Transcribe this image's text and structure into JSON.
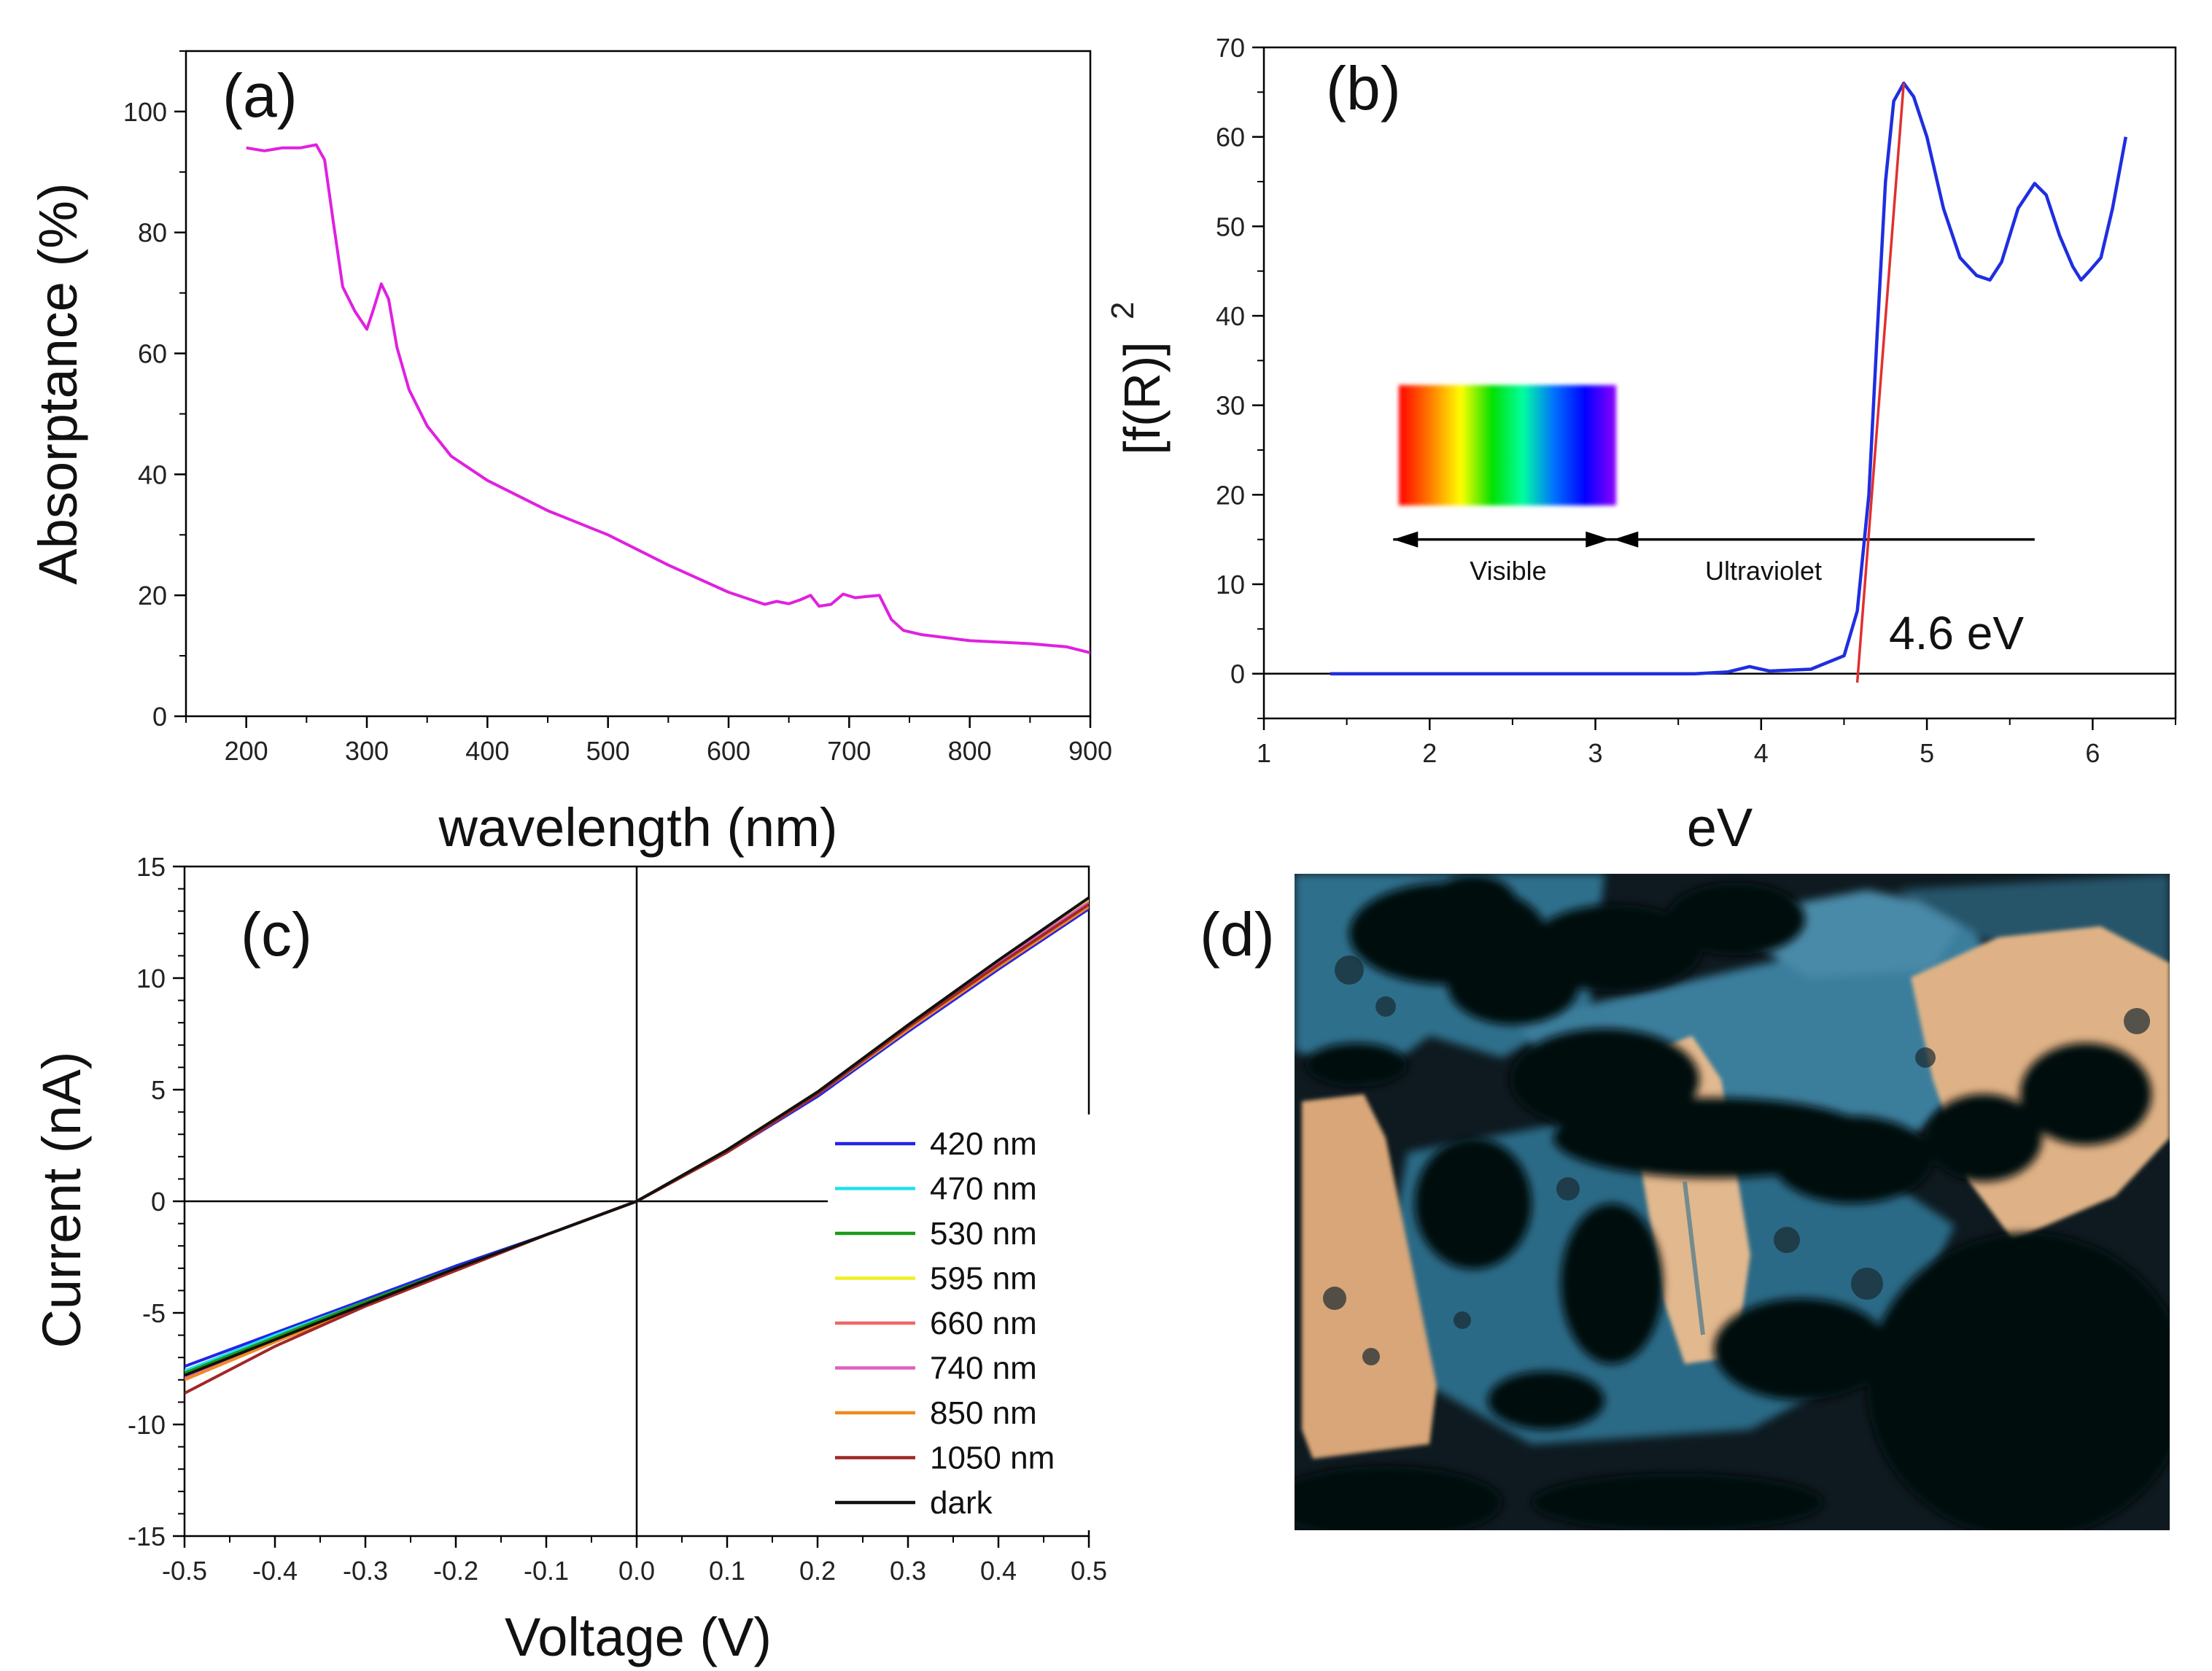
{
  "chart_data": [
    {
      "id": "a",
      "panel_label": "(a)",
      "type": "line",
      "xlabel": "wavelength (nm)",
      "ylabel": "Absorptance (%)",
      "xlim": [
        150,
        900
      ],
      "ylim": [
        0,
        110
      ],
      "xticks": [
        200,
        300,
        400,
        500,
        600,
        700,
        800,
        900
      ],
      "yticks": [
        0,
        20,
        40,
        60,
        80,
        100
      ],
      "series": [
        {
          "name": "absorptance",
          "color": "#e020e0",
          "x": [
            200,
            215,
            230,
            245,
            258,
            265,
            272,
            280,
            290,
            300,
            305,
            312,
            318,
            325,
            335,
            350,
            370,
            400,
            450,
            500,
            550,
            600,
            630,
            640,
            650,
            660,
            668,
            675,
            685,
            695,
            705,
            715,
            725,
            735,
            745,
            760,
            800,
            850,
            880,
            900
          ],
          "y": [
            94,
            93.5,
            94,
            94,
            94.5,
            92,
            82,
            71,
            67,
            64,
            67,
            71.5,
            69,
            61,
            54,
            48,
            43,
            39,
            34,
            30,
            25,
            20.5,
            18.5,
            19,
            18.6,
            19.3,
            20,
            18.2,
            18.5,
            20.2,
            19.6,
            19.8,
            20,
            16,
            14.2,
            13.5,
            12.5,
            12,
            11.5,
            10.5
          ]
        }
      ]
    },
    {
      "id": "b",
      "panel_label": "(b)",
      "type": "line",
      "xlabel": "eV",
      "ylabel_main": "[f(R)]",
      "ylabel_sup": "2",
      "xlim": [
        1,
        6.5
      ],
      "ylim": [
        -5,
        70
      ],
      "xticks": [
        1,
        2,
        3,
        4,
        5,
        6
      ],
      "yticks": [
        0,
        10,
        20,
        30,
        40,
        50,
        60,
        70
      ],
      "series": [
        {
          "name": "spectrum",
          "color": "#1f2ee0",
          "x": [
            1.4,
            2.0,
            3.0,
            3.6,
            3.8,
            3.93,
            4.05,
            4.3,
            4.5,
            4.58,
            4.65,
            4.7,
            4.75,
            4.8,
            4.86,
            4.92,
            5.0,
            5.1,
            5.2,
            5.3,
            5.38,
            5.45,
            5.55,
            5.65,
            5.72,
            5.8,
            5.88,
            5.93,
            5.98,
            6.05,
            6.12,
            6.2
          ],
          "y": [
            0,
            0,
            0,
            0,
            0.2,
            0.8,
            0.3,
            0.5,
            2,
            7,
            20,
            38,
            55,
            64,
            66,
            64.5,
            60,
            52,
            46.5,
            44.5,
            44,
            46,
            52,
            54.8,
            53.5,
            49,
            45.5,
            44,
            45,
            46.5,
            52,
            60
          ]
        }
      ],
      "fit_line": {
        "color": "#e03030",
        "x": [
          4.58,
          4.86
        ],
        "y": [
          -1,
          66
        ]
      },
      "baseline": 0,
      "arrow_y": 15,
      "arrow_x": [
        1.78,
        3.1,
        5.65
      ],
      "visible_label": "Visible",
      "uv_label": "Ultraviolet",
      "bandgap_label": "4.6 eV",
      "spectrum_inset_stops": [
        "#ff0000",
        "#ff7a00",
        "#ffff00",
        "#00e000",
        "#00ffa0",
        "#0070ff",
        "#0000ff",
        "#9000ff"
      ]
    },
    {
      "id": "c",
      "panel_label": "(c)",
      "type": "line",
      "xlabel": "Voltage (V)",
      "ylabel": "Current (nA)",
      "xlim": [
        -0.5,
        0.5
      ],
      "ylim": [
        -15,
        15
      ],
      "xticks": [
        -0.5,
        -0.4,
        -0.3,
        -0.2,
        -0.1,
        0.0,
        0.1,
        0.2,
        0.3,
        0.4,
        0.5
      ],
      "xtick_labels": [
        "-0.5",
        "-0.4",
        "-0.3",
        "-0.2",
        "-0.1",
        "0.0",
        "0.1",
        "0.2",
        "0.3",
        "0.4",
        "0.5"
      ],
      "yticks": [
        -15,
        -10,
        -5,
        0,
        5,
        10,
        15
      ],
      "x": [
        -0.5,
        -0.4,
        -0.3,
        -0.2,
        -0.1,
        0.0,
        0.1,
        0.2,
        0.3,
        0.4,
        0.5
      ],
      "series": [
        {
          "name": "420 nm",
          "color": "#2323e8",
          "y": [
            -7.4,
            -5.9,
            -4.4,
            -2.9,
            -1.5,
            0.0,
            2.2,
            4.7,
            7.6,
            10.4,
            13.1
          ]
        },
        {
          "name": "470 nm",
          "color": "#20e0f0",
          "y": [
            -7.6,
            -6.0,
            -4.5,
            -3.0,
            -1.5,
            0.0,
            2.2,
            4.8,
            7.7,
            10.6,
            13.4
          ]
        },
        {
          "name": "530 nm",
          "color": "#1a9a1a",
          "y": [
            -7.7,
            -6.1,
            -4.5,
            -3.0,
            -1.5,
            0.0,
            2.2,
            4.8,
            7.8,
            10.7,
            13.5
          ]
        },
        {
          "name": "595 nm",
          "color": "#f0f020",
          "y": [
            -7.8,
            -6.2,
            -4.6,
            -3.1,
            -1.5,
            0.0,
            2.3,
            4.9,
            7.8,
            10.7,
            13.5
          ]
        },
        {
          "name": "660 nm",
          "color": "#f06868",
          "y": [
            -8.0,
            -6.3,
            -4.6,
            -3.1,
            -1.5,
            0.0,
            2.2,
            4.8,
            7.8,
            10.6,
            13.3
          ]
        },
        {
          "name": "740 nm",
          "color": "#e060c0",
          "y": [
            -7.9,
            -6.3,
            -4.6,
            -3.1,
            -1.5,
            0.0,
            2.2,
            4.8,
            7.8,
            10.7,
            13.4
          ]
        },
        {
          "name": "850 nm",
          "color": "#f08a20",
          "y": [
            -8.0,
            -6.3,
            -4.7,
            -3.1,
            -1.5,
            0.0,
            2.2,
            4.8,
            7.7,
            10.5,
            13.2
          ]
        },
        {
          "name": "1050 nm",
          "color": "#a02828",
          "y": [
            -8.6,
            -6.5,
            -4.7,
            -3.1,
            -1.5,
            0.0,
            2.2,
            4.8,
            7.8,
            10.6,
            13.3
          ]
        },
        {
          "name": "dark",
          "color": "#111111",
          "y": [
            -7.8,
            -6.2,
            -4.6,
            -3.0,
            -1.5,
            0.0,
            2.3,
            4.9,
            7.9,
            10.8,
            13.6
          ]
        }
      ]
    }
  ],
  "panel_d": {
    "panel_label": "(d)"
  }
}
